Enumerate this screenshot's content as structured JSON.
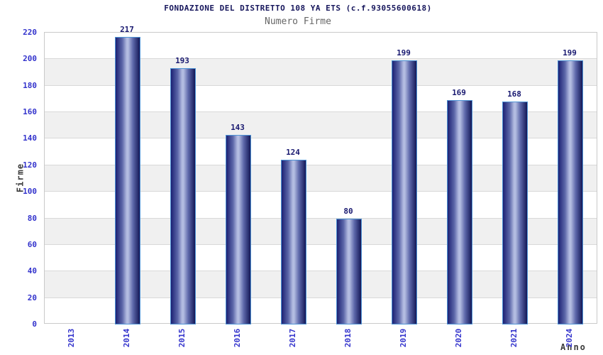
{
  "chart_data": {
    "type": "bar",
    "title": "FONDAZIONE DEL DISTRETTO 108 YA ETS (c.f.93055600618)",
    "subtitle": "Numero Firme",
    "xlabel": "Anno",
    "ylabel": "Firme",
    "categories": [
      "2013",
      "2014",
      "2015",
      "2016",
      "2017",
      "2018",
      "2019",
      "2020",
      "2021",
      "2024"
    ],
    "values": [
      0,
      217,
      193,
      143,
      124,
      80,
      199,
      169,
      168,
      199
    ],
    "ylim": [
      0,
      220
    ],
    "ytick_step": 20,
    "yticks": [
      0,
      20,
      40,
      60,
      80,
      100,
      120,
      140,
      160,
      180,
      200,
      220
    ],
    "grid": "horizontal gridlines with alternating shaded bands",
    "legend_position": "none",
    "colors": {
      "title": "#16165c",
      "subtitle": "#666666",
      "tick_label": "#3333cc",
      "value_label": "#191970",
      "axis_title": "#3a3a3a",
      "band": "#f0f0f0",
      "gridline": "#d9d9d9",
      "plot_border": "#c9c9c9",
      "bar_border": "#4f94d6",
      "bar_dark": "#1c2173",
      "bar_mid": "#5d68aa",
      "bar_highlight": "#b3bce1",
      "bar_dark_right": "#141857",
      "background": "#ffffff"
    }
  }
}
